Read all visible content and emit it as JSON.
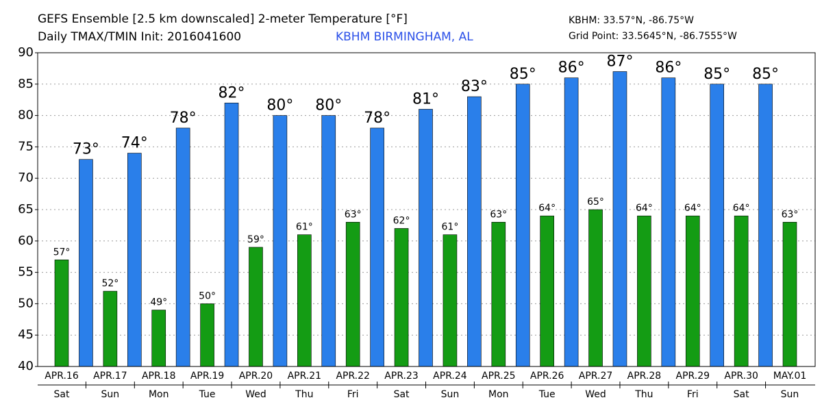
{
  "chart_data": {
    "type": "bar",
    "title": "GEFS Ensemble [2.5 km downscaled] 2-meter Temperature [°F]",
    "subtitle": "Daily TMAX/TMIN Init: 2016041600",
    "location": "KBHM BIRMINGHAM, AL",
    "station": "KBHM: 33.57°N, -86.75°W",
    "grid_point": "Grid Point: 33.5645°N, -86.7555°W",
    "categories": [
      "APR.16",
      "APR.17",
      "APR.18",
      "APR.19",
      "APR.20",
      "APR.21",
      "APR.22",
      "APR.23",
      "APR.24",
      "APR.25",
      "APR.26",
      "APR.27",
      "APR.28",
      "APR.29",
      "APR.30",
      "MAY.01"
    ],
    "weekdays": [
      "Sat",
      "Sun",
      "Mon",
      "Tue",
      "Wed",
      "Thu",
      "Fri",
      "Sat",
      "Sun",
      "Mon",
      "Tue",
      "Wed",
      "Thu",
      "Fri",
      "Sat",
      "Sun"
    ],
    "series": [
      {
        "color": "#149c14",
        "values": [
          57,
          52,
          49,
          50,
          59,
          61,
          63,
          62,
          61,
          63,
          64,
          65,
          64,
          64,
          64,
          63
        ],
        "value_labels": [
          "57°",
          "52°",
          "49°",
          "50°",
          "59°",
          "61°",
          "63°",
          "62°",
          "61°",
          "63°",
          "64°",
          "65°",
          "64°",
          "64°",
          "64°",
          "63°"
        ]
      },
      {
        "color": "#2a7fea",
        "values": [
          73,
          74,
          78,
          82,
          80,
          80,
          78,
          81,
          83,
          85,
          86,
          87,
          86,
          85,
          85,
          null
        ],
        "value_labels": [
          "73°",
          "74°",
          "78°",
          "82°",
          "80°",
          "80°",
          "78°",
          "81°",
          "83°",
          "85°",
          "86°",
          "87°",
          "86°",
          "85°",
          "85°",
          null
        ]
      }
    ],
    "ylim": [
      40,
      90
    ],
    "yticks": [
      40,
      45,
      50,
      55,
      60,
      65,
      70,
      75,
      80,
      85,
      90
    ],
    "grid": true
  }
}
